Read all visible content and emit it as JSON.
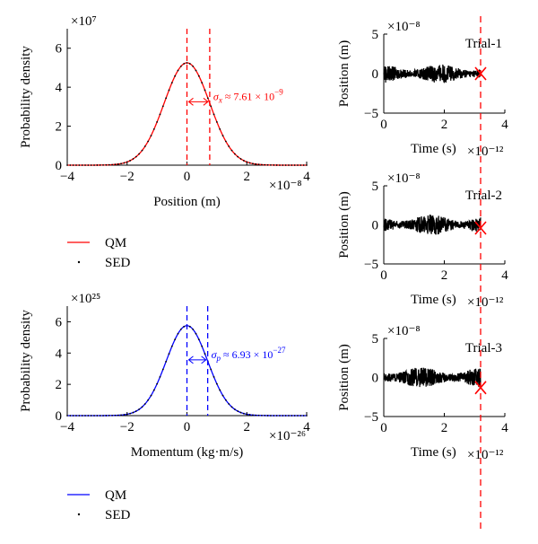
{
  "colors": {
    "qm_pos": "#ff0000",
    "qm_mom": "#0000ff",
    "sed": "#000000",
    "trace": "#000000",
    "marker": "#ff0000",
    "cut": "#ff0000"
  },
  "chart_data": [
    {
      "id": "pos-dist",
      "type": "line",
      "xlabel": "Position (m)",
      "ylabel": "Probability density",
      "x_exp": "×10⁻⁸",
      "y_exp": "×10⁷",
      "xlim": [
        -4,
        4
      ],
      "ylim": [
        0,
        7
      ],
      "xticks": [
        "−4",
        "−2",
        "0",
        "2",
        "4"
      ],
      "yticks": [
        "0",
        "2",
        "4",
        "6"
      ],
      "series": [
        {
          "name": "QM",
          "peak": 5.25,
          "mean": 0,
          "sigma": 0.761
        },
        {
          "name": "SED",
          "peak": 5.25,
          "mean": 0,
          "sigma": 0.761,
          "style": "dots"
        }
      ],
      "dashed_lines_x": [
        0,
        0.761
      ],
      "annotation": "σx ≈ 7.61 × 10⁻⁹",
      "annotation_parts": {
        "sym": "σ",
        "sub": "x",
        "mid": " ≈ 7.61 × 10",
        "sup": "−9"
      },
      "legend": [
        "QM",
        "SED"
      ]
    },
    {
      "id": "mom-dist",
      "type": "line",
      "xlabel": "Momentum (kg·m/s)",
      "ylabel": "Probability density",
      "x_exp": "×10⁻²⁶",
      "y_exp": "×10²⁵",
      "xlim": [
        -4,
        4
      ],
      "ylim": [
        0,
        7
      ],
      "xticks": [
        "−4",
        "−2",
        "0",
        "2",
        "4"
      ],
      "yticks": [
        "0",
        "2",
        "4",
        "6"
      ],
      "series": [
        {
          "name": "QM",
          "peak": 5.75,
          "mean": 0,
          "sigma": 0.693
        },
        {
          "name": "SED",
          "peak": 5.75,
          "mean": 0,
          "sigma": 0.693,
          "style": "dots"
        }
      ],
      "dashed_lines_x": [
        0,
        0.693
      ],
      "annotation": "σp ≈ 6.93 × 10⁻²⁷",
      "annotation_parts": {
        "sym": "σ",
        "sub": "p",
        "mid": " ≈ 6.93 × 10",
        "sup": "−27"
      },
      "legend": [
        "QM",
        "SED"
      ]
    },
    {
      "id": "trial-1",
      "type": "line",
      "title": "Trial-1",
      "xlabel": "Time (s)",
      "ylabel": "Position (m)",
      "x_exp": "×10⁻¹²",
      "y_exp": "×10⁻⁸",
      "xlim": [
        0,
        4
      ],
      "ylim": [
        -5,
        5
      ],
      "xticks": [
        "0",
        "2",
        "4"
      ],
      "yticks": [
        "−5",
        "0",
        "5"
      ],
      "trace_end_time": 3.2,
      "trace_amplitude": 1.1,
      "marker": {
        "time": 3.2,
        "position": 0.0
      }
    },
    {
      "id": "trial-2",
      "type": "line",
      "title": "Trial-2",
      "xlabel": "Time (s)",
      "ylabel": "Position (m)",
      "x_exp": "×10⁻¹²",
      "y_exp": "×10⁻⁸",
      "xlim": [
        0,
        4
      ],
      "ylim": [
        -5,
        5
      ],
      "xticks": [
        "0",
        "2",
        "4"
      ],
      "yticks": [
        "−5",
        "0",
        "5"
      ],
      "trace_end_time": 3.2,
      "trace_amplitude": 1.2,
      "marker": {
        "time": 3.2,
        "position": -0.4
      }
    },
    {
      "id": "trial-3",
      "type": "line",
      "title": "Trial-3",
      "xlabel": "Time (s)",
      "ylabel": "Position (m)",
      "x_exp": "×10⁻¹²",
      "y_exp": "×10⁻⁸",
      "xlim": [
        0,
        4
      ],
      "ylim": [
        -5,
        5
      ],
      "xticks": [
        "0",
        "2",
        "4"
      ],
      "yticks": [
        "−5",
        "0",
        "5"
      ],
      "trace_end_time": 3.2,
      "trace_amplitude": 1.2,
      "marker": {
        "time": 3.2,
        "position": -1.3
      }
    }
  ],
  "cut_line_time": 3.2
}
